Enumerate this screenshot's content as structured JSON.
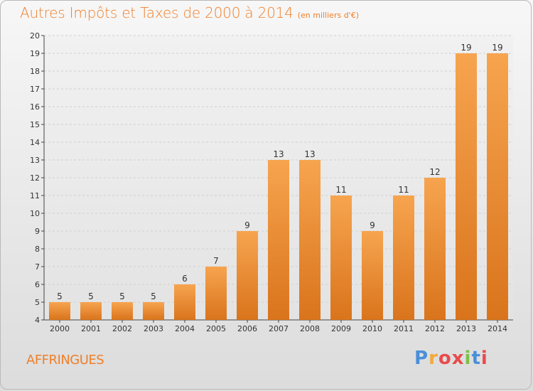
{
  "header": {
    "title": "Autres Impôts et Taxes de 2000 à 2014",
    "subtitle": "(en milliers d'€)"
  },
  "footer": {
    "commune": "AFFRINGUES",
    "logo_text": "Proxiti",
    "logo_colors": [
      "#4a90d9",
      "#f3a93b",
      "#e84b4b",
      "#e84b4b",
      "#7cc04a",
      "#4a90d9",
      "#e84b4b"
    ]
  },
  "colors": {
    "bar_light": "#f7a44f",
    "bar_dark": "#d9741c",
    "title": "#ef7f2a",
    "grid": "#d0d0d0",
    "axis": "#444444"
  },
  "chart_data": {
    "type": "bar",
    "title": "Autres Impôts et Taxes de 2000 à 2014",
    "subtitle": "(en milliers d'€)",
    "xlabel": "",
    "ylabel": "",
    "categories": [
      "2000",
      "2001",
      "2002",
      "2003",
      "2004",
      "2005",
      "2006",
      "2007",
      "2008",
      "2009",
      "2010",
      "2011",
      "2012",
      "2013",
      "2014"
    ],
    "values": [
      5,
      5,
      5,
      5,
      6,
      7,
      9,
      13,
      13,
      11,
      9,
      11,
      12,
      19,
      19
    ],
    "ylim": [
      4,
      20
    ],
    "yticks": [
      4,
      5,
      6,
      7,
      8,
      9,
      10,
      11,
      12,
      13,
      14,
      15,
      16,
      17,
      18,
      19,
      20
    ],
    "grid": true,
    "data_labels": true
  }
}
